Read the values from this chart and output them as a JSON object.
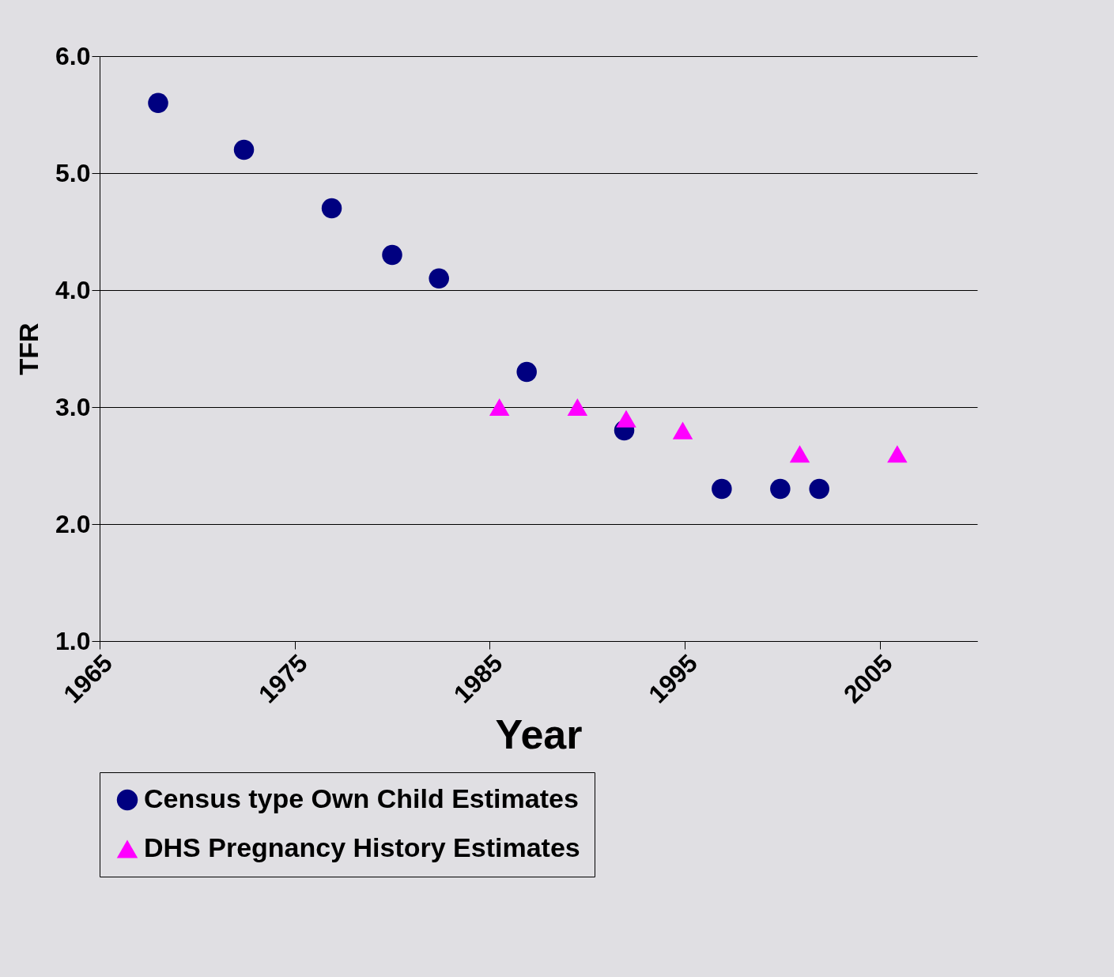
{
  "chart_data": {
    "type": "scatter",
    "xlabel": "Year",
    "ylabel": "TFR",
    "xlim": [
      1965,
      2010
    ],
    "xticks": [
      1965,
      1975,
      1985,
      1995,
      2005
    ],
    "ylim": [
      1,
      6
    ],
    "yticks": [
      {
        "value": 1,
        "label": "1.0"
      },
      {
        "value": 2,
        "label": "2.0"
      },
      {
        "value": 3,
        "label": "3.0"
      },
      {
        "value": 4,
        "label": "4.0"
      },
      {
        "value": 5,
        "label": "5.0"
      },
      {
        "value": 6,
        "label": "6.0"
      }
    ],
    "grid": "y",
    "legend": "bottom",
    "series": [
      {
        "name": "Census type Own Child Estimates",
        "color": "#000080",
        "marker": "circle",
        "x": [
          1968.0,
          1972.4,
          1976.9,
          1980.0,
          1982.4,
          1986.9,
          1991.9,
          1996.9,
          1999.9,
          2001.9
        ],
        "values": [
          5.6,
          5.2,
          4.7,
          4.3,
          4.1,
          3.3,
          2.8,
          2.3,
          2.3,
          2.3
        ]
      },
      {
        "name": "DHS Pregnancy History Estimates",
        "color": "#ff00ff",
        "marker": "triangle",
        "x": [
          1985.5,
          1989.5,
          1992.0,
          1994.9,
          2000.9,
          2005.9
        ],
        "values": [
          3.0,
          3.0,
          2.9,
          2.8,
          2.6,
          2.6
        ]
      }
    ]
  }
}
